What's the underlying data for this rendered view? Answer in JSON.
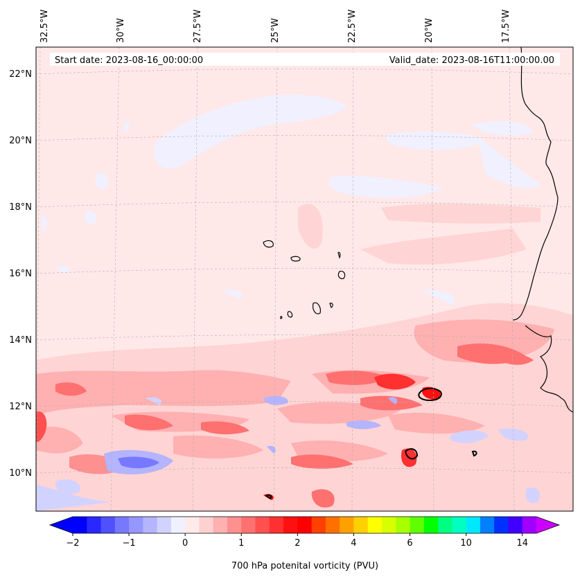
{
  "header": {
    "start_date": "Start date: 2023-08-16_00:00:00",
    "valid_date": "Valid_date: 2023-08-16T11:00:00.00"
  },
  "longitude_labels": [
    "32.5°W",
    "30°W",
    "27.5°W",
    "25°W",
    "22.5°W",
    "20°W",
    "17.5°W"
  ],
  "latitude_labels": [
    "22°N",
    "20°N",
    "18°N",
    "16°N",
    "14°N",
    "12°N",
    "10°N"
  ],
  "colorbar": {
    "label": "700 hPa potenital vorticity (PVU)",
    "tick_labels": [
      "−2",
      "−1",
      "0",
      "1",
      "2",
      "4",
      "6",
      "10",
      "14"
    ],
    "colors": [
      "#0000ff",
      "#2828ff",
      "#5050ff",
      "#7878ff",
      "#9696ff",
      "#b4b4ff",
      "#d2d2ff",
      "#f0f0ff",
      "#ffeaea",
      "#ffd0d0",
      "#ffb0b0",
      "#ff9090",
      "#ff7070",
      "#ff5050",
      "#ff3030",
      "#ff1010",
      "#ff0000",
      "#ff4000",
      "#ff7000",
      "#ffa000",
      "#ffd000",
      "#ffff00",
      "#d8ff00",
      "#a8ff00",
      "#60ff00",
      "#00ff00",
      "#00ff80",
      "#00ffc0",
      "#00e8ff",
      "#0080ff",
      "#0030ff",
      "#4000ff",
      "#a000ff"
    ],
    "under_color": "#0000ff",
    "over_color": "#cc00ff"
  },
  "map_colors": {
    "background": "#ffe8e8",
    "land_outline": "#000000",
    "grid": "#b0b0b0"
  }
}
